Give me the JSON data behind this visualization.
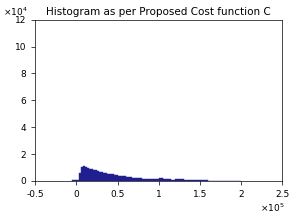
{
  "title": "Histogram as per Proposed Cost function C",
  "bar_color": "#1f1f8f",
  "xlim": [
    -50000,
    250000
  ],
  "ylim": [
    0,
    120000
  ],
  "xticks": [
    -50000,
    0,
    50000,
    100000,
    150000,
    200000,
    250000
  ],
  "xtick_labels": [
    "-0.5",
    "0",
    "0.5",
    "1",
    "1.5",
    "2",
    "2.5"
  ],
  "yticks": [
    0,
    20000,
    40000,
    60000,
    80000,
    100000,
    120000
  ],
  "ytick_labels": [
    "0",
    "2",
    "4",
    "6",
    "8",
    "10",
    "12"
  ],
  "bar_lefts": [
    -5000,
    0,
    2500,
    5000,
    7500,
    10000,
    12500,
    15000,
    17500,
    20000,
    22500,
    25000,
    27500,
    30000,
    32500,
    35000,
    37500,
    40000,
    42500,
    45000,
    47500,
    50000,
    52500,
    55000,
    57500,
    60000,
    62500,
    65000,
    67500,
    70000,
    72500,
    75000,
    77500,
    80000,
    82500,
    85000,
    87500,
    90000,
    92500,
    95000,
    97500,
    100000,
    105000,
    110000,
    115000,
    120000,
    130000,
    140000,
    160000,
    190000
  ],
  "bar_widths": [
    5000,
    2500,
    2500,
    2500,
    2500,
    2500,
    2500,
    2500,
    2500,
    2500,
    2500,
    2500,
    2500,
    2500,
    2500,
    2500,
    2500,
    2500,
    2500,
    2500,
    2500,
    2500,
    2500,
    2500,
    2500,
    2500,
    2500,
    2500,
    2500,
    2500,
    2500,
    2500,
    2500,
    2500,
    2500,
    2500,
    2500,
    2500,
    2500,
    2500,
    2500,
    5000,
    5000,
    5000,
    5000,
    10000,
    10000,
    20000,
    30000,
    10000
  ],
  "bar_heights": [
    500,
    1000,
    6000,
    10400,
    11100,
    10000,
    9600,
    9000,
    8500,
    8200,
    7800,
    7500,
    7000,
    6600,
    6200,
    5800,
    5400,
    5100,
    4800,
    4500,
    4200,
    4000,
    3700,
    3500,
    3300,
    3100,
    2900,
    2700,
    2500,
    2400,
    2200,
    2100,
    1900,
    1800,
    1700,
    1600,
    1500,
    1400,
    1300,
    1200,
    1100,
    2000,
    1600,
    1300,
    1000,
    1500,
    1000,
    600,
    300,
    100
  ]
}
